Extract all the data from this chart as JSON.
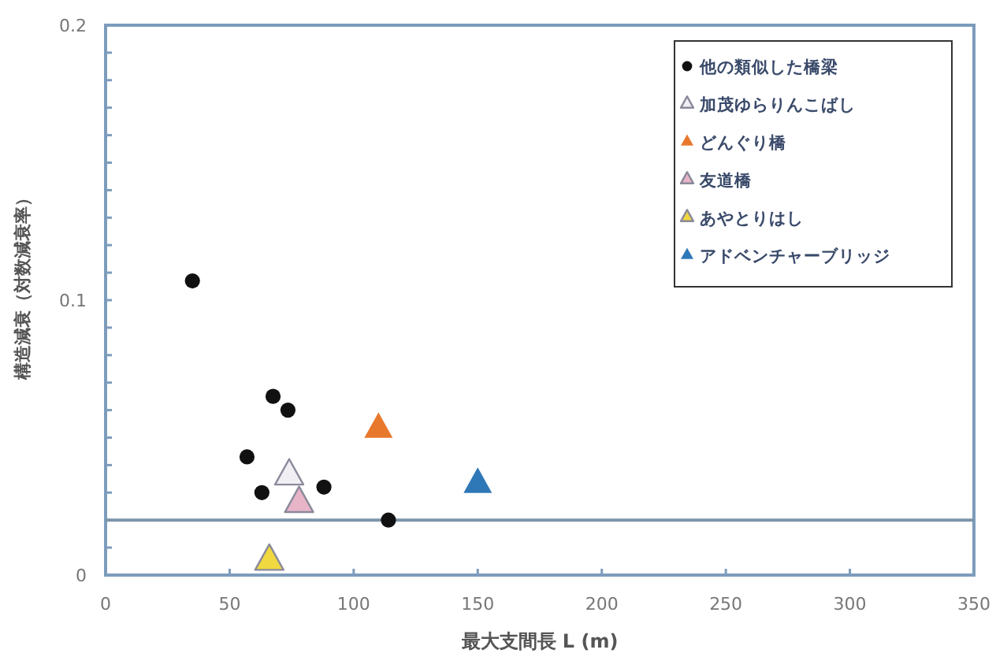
{
  "chart_data": {
    "type": "scatter",
    "xlabel": "最大支間長 L (m)",
    "ylabel": "構造減衰（対数減衰率）",
    "xlim": [
      0,
      350
    ],
    "xticks": [
      0,
      50,
      100,
      150,
      200,
      250,
      300,
      350
    ],
    "ylim": [
      0,
      0.2
    ],
    "yticks": [
      0,
      {
        "value": 0.01,
        "label": null
      },
      {
        "value": 0.02,
        "label": null
      },
      {
        "value": 0.03,
        "label": null
      },
      {
        "value": 0.04,
        "label": null
      },
      {
        "value": 0.05,
        "label": null
      },
      {
        "value": 0.06,
        "label": null
      },
      {
        "value": 0.07,
        "label": null
      },
      {
        "value": 0.08,
        "label": null
      },
      {
        "value": 0.09,
        "label": null
      },
      0.1,
      {
        "value": 0.11,
        "label": null
      },
      {
        "value": 0.12,
        "label": null
      },
      {
        "value": 0.13,
        "label": null
      },
      {
        "value": 0.14,
        "label": null
      },
      {
        "value": 0.15,
        "label": null
      },
      {
        "value": 0.16,
        "label": null
      },
      {
        "value": 0.17,
        "label": null
      },
      {
        "value": 0.18,
        "label": null
      },
      {
        "value": 0.19,
        "label": null
      },
      0.2
    ],
    "grid": false,
    "legend": "top right",
    "ref_lines": [
      {
        "axis": "y",
        "value": 0.02,
        "color": "#7d95aa"
      }
    ],
    "series": [
      {
        "name": "他の類似した橋梁",
        "color": "#111111",
        "marker": "circle",
        "x": [
          35,
          67.5,
          73.5,
          57,
          63,
          88,
          114
        ],
        "values": [
          0.107,
          0.065,
          0.06,
          0.043,
          0.03,
          0.032,
          0.02
        ]
      },
      {
        "name": "加茂ゆらりんこばし",
        "color": "#f1eef4",
        "marker": "triangle",
        "x": [
          74
        ],
        "values": [
          0.036
        ]
      },
      {
        "name": "どんぐり橋",
        "color": "#e8782c",
        "marker": "triangle",
        "x": [
          110
        ],
        "values": [
          0.053
        ]
      },
      {
        "name": "友道橋",
        "color": "#e8b4c8",
        "marker": "triangle",
        "x": [
          78
        ],
        "values": [
          0.026
        ]
      },
      {
        "name": "あやとりはし",
        "color": "#f0d840",
        "marker": "triangle",
        "x": [
          66
        ],
        "values": [
          0.005
        ]
      },
      {
        "name": "アドベンチャーブリッジ",
        "color": "#2f78b8",
        "marker": "triangle",
        "x": [
          150
        ],
        "values": [
          0.033
        ]
      }
    ]
  }
}
